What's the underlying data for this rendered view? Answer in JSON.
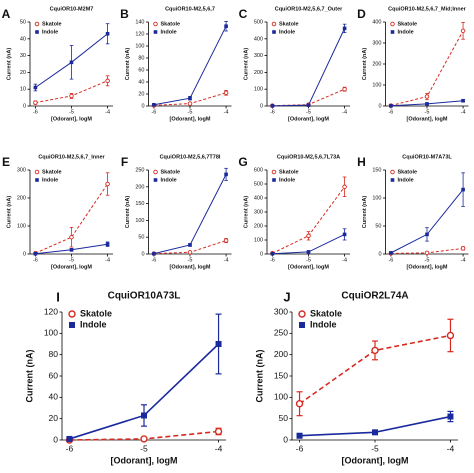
{
  "chart_data": [
    {
      "type": "line",
      "label": "A",
      "title": "CquiOR10-M2M7",
      "x_label": "[Odorant], logM",
      "y_label": "Current (nA)",
      "x": [
        -6,
        -5,
        -4
      ],
      "xlim": [
        -6.15,
        -3.85
      ],
      "xticks": [
        -6,
        -5,
        -4
      ],
      "ylim": [
        0,
        50
      ],
      "yticks": [
        0,
        10,
        20,
        30,
        40,
        50
      ],
      "series": [
        {
          "name": "Skatole",
          "color": "#d62a20",
          "line_style": "dashed",
          "marker": "circle",
          "values": [
            2,
            6,
            15
          ],
          "errors": [
            1,
            1.5,
            3
          ]
        },
        {
          "name": "Indole",
          "color": "#1a2a9c",
          "line_style": "solid",
          "marker": "square",
          "values": [
            11,
            26,
            43
          ],
          "errors": [
            2,
            10,
            6
          ]
        }
      ]
    },
    {
      "type": "line",
      "label": "B",
      "title": "CquiOR10-M2,5,6,7",
      "x_label": "[Odorant], logM",
      "y_label": "Current (nA)",
      "x": [
        -6,
        -5,
        -4
      ],
      "xlim": [
        -6.15,
        -3.85
      ],
      "xticks": [
        -6,
        -5,
        -4
      ],
      "ylim": [
        0,
        140
      ],
      "yticks": [
        0,
        20,
        40,
        60,
        80,
        100,
        120,
        140
      ],
      "series": [
        {
          "name": "Skatole",
          "color": "#d62a20",
          "line_style": "dashed",
          "marker": "circle",
          "values": [
            1,
            4,
            22
          ],
          "errors": [
            0.5,
            1,
            4
          ]
        },
        {
          "name": "Indole",
          "color": "#1a2a9c",
          "line_style": "solid",
          "marker": "square",
          "values": [
            2,
            13,
            133
          ],
          "errors": [
            1,
            3,
            8
          ]
        }
      ]
    },
    {
      "type": "line",
      "label": "C",
      "title": "CquiOR10-M2,5,6,7_Outer",
      "x_label": "[Odorant], logM",
      "y_label": "Current (nA)",
      "x": [
        -6,
        -5,
        -4
      ],
      "xlim": [
        -6.15,
        -3.85
      ],
      "xticks": [
        -6,
        -5,
        -4
      ],
      "ylim": [
        0,
        500
      ],
      "yticks": [
        0,
        100,
        200,
        300,
        400,
        500
      ],
      "series": [
        {
          "name": "Skatole",
          "color": "#d62a20",
          "line_style": "dashed",
          "marker": "circle",
          "values": [
            2,
            8,
            100
          ],
          "errors": [
            2,
            3,
            12
          ]
        },
        {
          "name": "Indole",
          "color": "#1a2a9c",
          "line_style": "solid",
          "marker": "square",
          "values": [
            1,
            5,
            462
          ],
          "errors": [
            1,
            2,
            25
          ]
        }
      ]
    },
    {
      "type": "line",
      "label": "D",
      "title": "CquiOR10-M2,5,6,7_Mid;Inner",
      "x_label": "[Odorant], logM",
      "y_label": "Current (nA)",
      "x": [
        -6,
        -5,
        -4
      ],
      "xlim": [
        -6.15,
        -3.85
      ],
      "xticks": [
        -6,
        -5,
        -4
      ],
      "ylim": [
        0,
        400
      ],
      "yticks": [
        0,
        100,
        200,
        300,
        400
      ],
      "series": [
        {
          "name": "Skatole",
          "color": "#d62a20",
          "line_style": "dashed",
          "marker": "circle",
          "values": [
            2,
            45,
            358
          ],
          "errors": [
            2,
            15,
            40
          ]
        },
        {
          "name": "Indole",
          "color": "#1a2a9c",
          "line_style": "solid",
          "marker": "square",
          "values": [
            1,
            10,
            25
          ],
          "errors": [
            1,
            3,
            5
          ]
        }
      ]
    },
    {
      "type": "line",
      "label": "E",
      "title": "CquiOR10-M2,5,6,7_Inner",
      "x_label": "[Odorant], logM",
      "y_label": "Current (nA)",
      "x": [
        -6,
        -5,
        -4
      ],
      "xlim": [
        -6.15,
        -3.85
      ],
      "xticks": [
        -6,
        -5,
        -4
      ],
      "ylim": [
        0,
        300
      ],
      "yticks": [
        0,
        100,
        200,
        300
      ],
      "series": [
        {
          "name": "Skatole",
          "color": "#d62a20",
          "line_style": "dashed",
          "marker": "circle",
          "values": [
            3,
            60,
            250
          ],
          "errors": [
            2,
            35,
            40
          ]
        },
        {
          "name": "Indole",
          "color": "#1a2a9c",
          "line_style": "solid",
          "marker": "square",
          "values": [
            1,
            15,
            35
          ],
          "errors": [
            1,
            5,
            8
          ]
        }
      ]
    },
    {
      "type": "line",
      "label": "F",
      "title": "CquiOR10-M2,5,6,7T78I",
      "x_label": "[Odorant], logM",
      "y_label": "Current (nA)",
      "x": [
        -6,
        -5,
        -4
      ],
      "xlim": [
        -6.15,
        -3.85
      ],
      "xticks": [
        -6,
        -5,
        -4
      ],
      "ylim": [
        0,
        250
      ],
      "yticks": [
        0,
        50,
        100,
        150,
        200,
        250
      ],
      "series": [
        {
          "name": "Skatole",
          "color": "#d62a20",
          "line_style": "dashed",
          "marker": "circle",
          "values": [
            1,
            5,
            40
          ],
          "errors": [
            1,
            2,
            6
          ]
        },
        {
          "name": "Indole",
          "color": "#1a2a9c",
          "line_style": "solid",
          "marker": "square",
          "values": [
            1,
            27,
            237
          ],
          "errors": [
            1,
            4,
            18
          ]
        }
      ]
    },
    {
      "type": "line",
      "label": "G",
      "title": "CquiOR10-M2,5,6,7L73A",
      "x_label": "[Odorant], logM",
      "y_label": "Current (nA)",
      "x": [
        -6,
        -5,
        -4
      ],
      "xlim": [
        -6.15,
        -3.85
      ],
      "xticks": [
        -6,
        -5,
        -4
      ],
      "ylim": [
        0,
        600
      ],
      "yticks": [
        0,
        100,
        200,
        300,
        400,
        500,
        600
      ],
      "series": [
        {
          "name": "Skatole",
          "color": "#d62a20",
          "line_style": "dashed",
          "marker": "circle",
          "values": [
            5,
            130,
            480
          ],
          "errors": [
            3,
            30,
            70
          ]
        },
        {
          "name": "Indole",
          "color": "#1a2a9c",
          "line_style": "solid",
          "marker": "square",
          "values": [
            2,
            15,
            140
          ],
          "errors": [
            1,
            5,
            40
          ]
        }
      ]
    },
    {
      "type": "line",
      "label": "H",
      "title": "CquiOR10-M7A73L",
      "x_label": "[Odorant], logM",
      "y_label": "Current (nA)",
      "x": [
        -6,
        -5,
        -4
      ],
      "xlim": [
        -6.15,
        -3.85
      ],
      "xticks": [
        -6,
        -5,
        -4
      ],
      "ylim": [
        0,
        150
      ],
      "yticks": [
        0,
        50,
        100,
        150
      ],
      "series": [
        {
          "name": "Skatole",
          "color": "#d62a20",
          "line_style": "dashed",
          "marker": "circle",
          "values": [
            1,
            2,
            10
          ],
          "errors": [
            0.5,
            1,
            3
          ]
        },
        {
          "name": "Indole",
          "color": "#1a2a9c",
          "line_style": "solid",
          "marker": "square",
          "values": [
            2,
            35,
            115
          ],
          "errors": [
            1,
            12,
            30
          ]
        }
      ]
    },
    {
      "type": "line",
      "label": "I",
      "title": "CquiOR10A73L",
      "x_label": "[Odorant], logM",
      "y_label": "Current (nA)",
      "x": [
        -6,
        -5,
        -4
      ],
      "xlim": [
        -6.1,
        -3.9
      ],
      "xticks": [
        -6,
        -5,
        -4
      ],
      "ylim": [
        0,
        120
      ],
      "yticks": [
        0,
        20,
        40,
        60,
        80,
        100,
        120
      ],
      "series": [
        {
          "name": "Skatole",
          "color": "#d62a20",
          "line_style": "dashed",
          "marker": "circle",
          "values": [
            0,
            1,
            8
          ],
          "errors": [
            0.5,
            1,
            3
          ]
        },
        {
          "name": "Indole",
          "color": "#1a2a9c",
          "line_style": "solid",
          "marker": "square",
          "values": [
            1,
            23,
            90
          ],
          "errors": [
            1,
            10,
            28
          ]
        }
      ]
    },
    {
      "type": "line",
      "label": "J",
      "title": "CquiOR2L74A",
      "x_label": "[Odorant], logM",
      "y_label": "Current (nA)",
      "x": [
        -6,
        -5,
        -4
      ],
      "xlim": [
        -6.1,
        -3.9
      ],
      "xticks": [
        -6,
        -5,
        -4
      ],
      "ylim": [
        0,
        300
      ],
      "yticks": [
        0,
        50,
        100,
        150,
        200,
        250,
        300
      ],
      "series": [
        {
          "name": "Skatole",
          "color": "#d62a20",
          "line_style": "dashed",
          "marker": "circle",
          "values": [
            85,
            210,
            245
          ],
          "errors": [
            28,
            22,
            38
          ]
        },
        {
          "name": "Indole",
          "color": "#1a2a9c",
          "line_style": "solid",
          "marker": "square",
          "values": [
            10,
            18,
            55
          ],
          "errors": [
            5,
            3,
            12
          ]
        }
      ]
    }
  ]
}
